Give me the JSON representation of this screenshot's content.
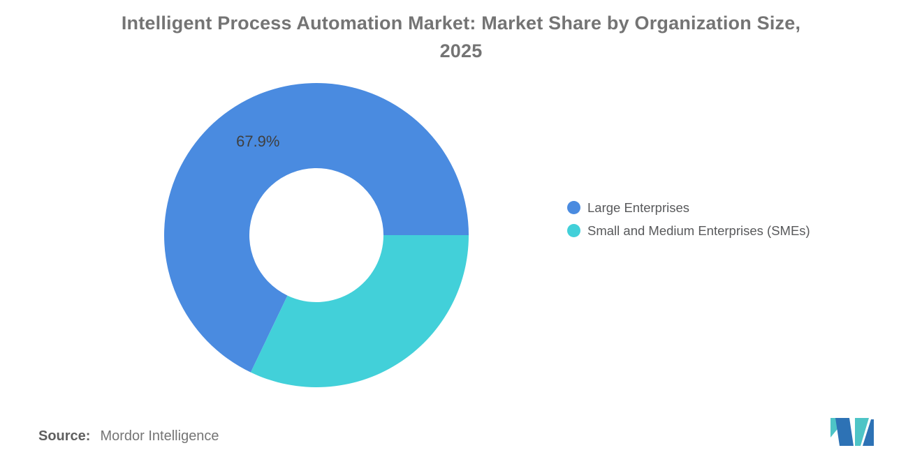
{
  "chart_data": {
    "type": "pie",
    "donut": true,
    "title": "Intelligent Process Automation Market: Market Share by Organization Size,\n2025",
    "start_angle_deg": 115.56,
    "outer_radius": 218,
    "inner_radius": 96,
    "legend_position": "right",
    "grid": false,
    "slices": [
      {
        "name": "Large Enterprises",
        "value": 67.9,
        "label": "67.9%",
        "color": "#4A8BE0"
      },
      {
        "name": "Small and Medium Enterprises (SMEs)",
        "value": 32.1,
        "label": "",
        "color": "#42D0D9"
      }
    ]
  },
  "legend": {
    "items": [
      {
        "label": "Large Enterprises"
      },
      {
        "label": "Small and Medium Enterprises (SMEs)"
      }
    ]
  },
  "source": {
    "label": "Source:",
    "text": "Mordor Intelligence"
  },
  "branding": {
    "logo_name": "mordor-intelligence-logo",
    "logo_teal": "#4EC4C6",
    "logo_blue": "#2D72B5"
  },
  "colors": {
    "background": "#ffffff",
    "title_text": "#747474",
    "label_text": "#3f3f3f",
    "legend_text": "#58595B"
  }
}
